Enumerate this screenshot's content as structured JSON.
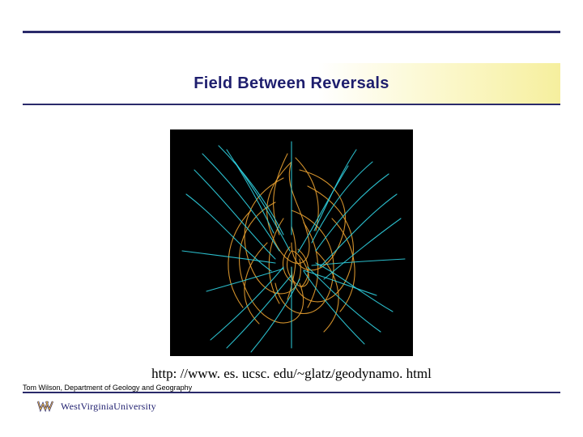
{
  "title": "Field Between Reversals",
  "caption": "http: //www. es. ucsc. edu/~glatz/geodynamo. html",
  "footer": "Tom Wilson, Department of Geology and Geography",
  "logo_text": "WestVirginiaUniversity",
  "colors": {
    "rule": "#2a2a6a",
    "title_color": "#1e1e6e",
    "band_grad_start": "#ffffff",
    "band_grad_end": "#f6ef9e",
    "figure_bg": "#000000",
    "field_line_a": "#e8a030",
    "field_line_b": "#2fd0e0",
    "logo_outline": "#1e1e6e",
    "logo_fill": "#e8b84a"
  },
  "figure": {
    "type": "network",
    "description": "Tangled geomagnetic field lines during a reversal transition",
    "background": "#000000",
    "line_width": 1.1,
    "groups": [
      {
        "color": "#e8a030",
        "paths": [
          "M150,40 C120,70 110,100 130,140 C150,180 180,170 170,130 C160,90 140,70 150,40",
          "M160,50 C200,60 230,90 210,140 C190,190 150,180 150,140",
          "M140,60 C100,80 80,120 100,170 C120,220 170,210 160,160",
          "M170,70 C210,90 240,130 220,180 C200,230 150,220 150,170",
          "M130,90 C90,110 70,160 100,210 C130,260 180,240 160,190",
          "M150,100 C180,110 210,140 200,190 C190,240 140,240 130,190",
          "M145,30 C130,60 120,90 135,130",
          "M155,35 C175,55 190,85 180,125",
          "M120,140 C90,170 80,210 110,240",
          "M180,150 C210,180 220,220 190,250",
          "M150,120 C160,150 155,180 145,210",
          "M140,110 C120,140 115,180 135,215",
          "M165,115 C185,145 190,185 170,220",
          "M100,100 C70,130 60,180 90,220",
          "M200,110 C230,140 240,190 210,225",
          "M150,150 C140,165 145,180 155,190 C165,200 175,190 170,175 C165,160 155,150 150,150",
          "M148,145 C135,160 138,178 150,188",
          "M158,148 C172,160 176,180 162,195"
        ]
      },
      {
        "color": "#2fd0e0",
        "paths": [
          "M60,20 C90,50 120,90 140,130",
          "M40,30 C80,70 110,110 135,150",
          "M30,50 C70,90 100,130 130,160",
          "M20,80 C60,110 90,150 125,175",
          "M250,40 C220,65 195,100 175,140",
          "M270,55 C235,80 205,115 180,150",
          "M280,80 C245,105 215,140 185,170",
          "M285,110 C250,135 220,160 190,185",
          "M50,260 C85,230 115,200 140,170",
          "M70,270 C100,240 125,210 150,180",
          "M100,275 C125,245 145,215 160,185",
          "M240,265 C210,235 185,205 165,175",
          "M260,250 C225,225 195,195 170,170",
          "M275,225 C240,205 210,180 180,165",
          "M15,150 C55,155 95,160 130,165",
          "M290,160 C250,162 210,165 175,168",
          "M150,15 C150,50 150,90 150,130",
          "M150,270 C150,235 150,200 150,170",
          "M80,40 C105,75 130,115 148,150",
          "M220,45 C198,80 178,120 158,152",
          "M45,200 C80,190 115,180 140,172",
          "M255,205 C220,193 190,182 165,174",
          "M230,25 C210,55 195,90 178,125",
          "M70,25 C90,55 110,90 128,128"
        ]
      }
    ]
  },
  "typography": {
    "title_fontsize": 20,
    "title_weight": "bold",
    "caption_fontsize": 17,
    "caption_family": "Times New Roman",
    "footer_fontsize": 9
  }
}
